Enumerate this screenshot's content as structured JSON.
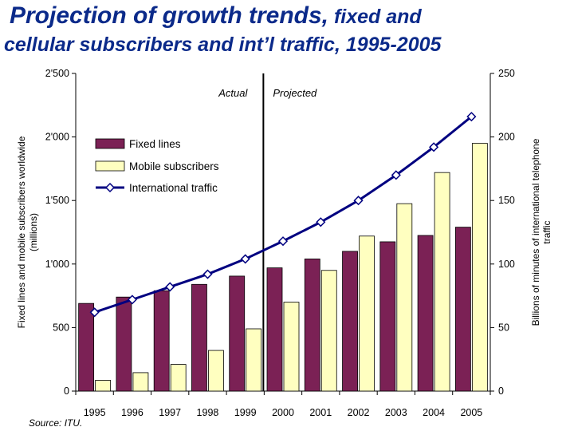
{
  "title": {
    "line1_main": "Projection of growth trends,",
    "line1_sub": " fixed and",
    "line2": "cellular subscribers and int’l traffic, 1995-2005"
  },
  "source": "Source:  ITU.",
  "chart_data": {
    "type": "bar",
    "categories": [
      "1995",
      "1996",
      "1997",
      "1998",
      "1999",
      "2000",
      "2001",
      "2002",
      "2003",
      "2004",
      "2005"
    ],
    "series": [
      {
        "name": "Fixed lines",
        "type": "bar",
        "axis": "left",
        "color": "#7b2155",
        "values": [
          690,
          740,
          790,
          840,
          905,
          970,
          1040,
          1100,
          1175,
          1225,
          1290
        ]
      },
      {
        "name": "Mobile subscribers",
        "type": "bar",
        "axis": "left",
        "color": "#ffffc0",
        "values": [
          85,
          145,
          210,
          320,
          490,
          700,
          950,
          1220,
          1475,
          1720,
          1950
        ]
      },
      {
        "name": "International traffic",
        "type": "line",
        "axis": "right",
        "color": "#000080",
        "values": [
          62,
          72,
          82,
          92,
          104,
          118,
          133,
          150,
          170,
          192,
          216
        ]
      }
    ],
    "y_left": {
      "label": "Fixed lines and mobile subscribers worldwide (millions)",
      "ylim": [
        0,
        2500
      ],
      "ticks": [
        0,
        500,
        1000,
        1500,
        2000,
        2500
      ],
      "tick_labels": [
        "0",
        "500",
        "1'000",
        "1'500",
        "2'000",
        "2'500"
      ]
    },
    "y_right": {
      "label": "Billions of minutes of international telephone traffic",
      "ylim": [
        0,
        250
      ],
      "ticks": [
        0,
        50,
        100,
        150,
        200,
        250
      ],
      "tick_labels": [
        "0",
        "50",
        "100",
        "150",
        "200",
        "250"
      ]
    },
    "annotations": {
      "left_region": "Actual",
      "right_region": "Projected",
      "divider_after": "1999"
    },
    "legend": {
      "placement": "upper-left",
      "items": [
        "Fixed lines",
        "Mobile subscribers",
        "International traffic"
      ]
    },
    "grid": false
  }
}
